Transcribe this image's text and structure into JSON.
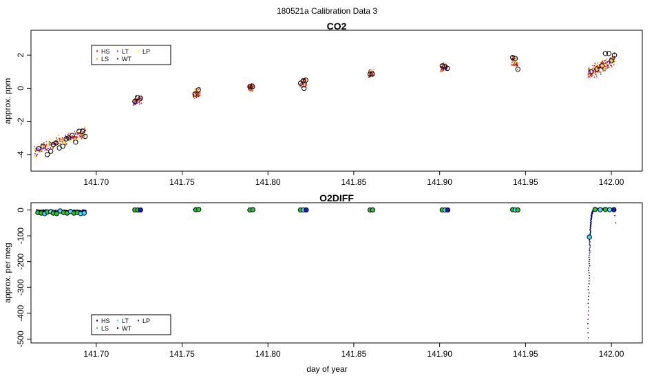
{
  "title": "180521a   Calibration Data 3",
  "xlabel": "day of year",
  "colors": {
    "HS": "#e8141c",
    "LS": "#ff9e12",
    "LT": "#a82df0",
    "WT": "#8a1010",
    "LP": "#ffff00",
    "HS2": "#000080",
    "LS2": "#22c832",
    "LT2": "#40e0ff",
    "WT2": "#000000",
    "LP2": "#1a1acc"
  },
  "chart_data": [
    {
      "type": "scatter",
      "title": "CO2",
      "ylabel": "approx. ppm",
      "xlim": [
        141.662,
        142.018
      ],
      "ylim": [
        -5.0,
        3.5
      ],
      "xticks": [
        141.7,
        141.75,
        141.8,
        141.85,
        141.9,
        141.95,
        142.0
      ],
      "xtick_labels": [
        "141.70",
        "141.75",
        "141.80",
        "141.85",
        "141.90",
        "141.95",
        "142.00"
      ],
      "yticks": [
        -4,
        -2,
        0,
        2
      ],
      "ytick_labels": [
        "-4",
        "-2",
        "0",
        "2"
      ],
      "legend": {
        "position": "top-left",
        "entries": [
          {
            "label": "HS",
            "color": "#e8141c"
          },
          {
            "label": "LS",
            "color": "#ff9e12"
          },
          {
            "label": "LT",
            "color": "#a82df0"
          },
          {
            "label": "WT",
            "color": "#8a1010"
          },
          {
            "label": "LP",
            "color": "#ffff00"
          }
        ]
      },
      "clusters": [
        {
          "x": [
            141.664,
            141.694
          ],
          "center": -3.2,
          "spread": 0.45,
          "trend": 1.2,
          "n": 260,
          "series": [
            "LT",
            "HS",
            "LS",
            "LP",
            "WT"
          ]
        },
        {
          "x": [
            141.7215,
            141.7265
          ],
          "center": -0.75,
          "spread": 0.35,
          "trend": 0.2,
          "n": 60,
          "series": [
            "HS",
            "LS",
            "LT",
            "WT"
          ]
        },
        {
          "x": [
            141.7565,
            141.7605
          ],
          "center": -0.3,
          "spread": 0.4,
          "trend": 0.15,
          "n": 60,
          "series": [
            "LS",
            "HS",
            "WT"
          ]
        },
        {
          "x": [
            141.7885,
            141.7915
          ],
          "center": 0.05,
          "spread": 0.35,
          "trend": 0.05,
          "n": 50,
          "series": [
            "HS",
            "LS",
            "WT"
          ]
        },
        {
          "x": [
            141.8185,
            141.8225
          ],
          "center": 0.3,
          "spread": 0.4,
          "trend": 0.1,
          "n": 60,
          "series": [
            "LS",
            "HS",
            "LT",
            "WT"
          ]
        },
        {
          "x": [
            141.8585,
            141.8615
          ],
          "center": 0.85,
          "spread": 0.35,
          "trend": 0.05,
          "n": 45,
          "series": [
            "LS",
            "HS",
            "WT"
          ]
        },
        {
          "x": [
            141.9005,
            141.9045
          ],
          "center": 1.25,
          "spread": 0.4,
          "trend": 0.05,
          "n": 55,
          "series": [
            "LS",
            "HS",
            "LT",
            "WT"
          ]
        },
        {
          "x": [
            141.9415,
            141.9455
          ],
          "center": 1.6,
          "spread": 0.45,
          "trend": -0.3,
          "n": 60,
          "series": [
            "LS",
            "HS",
            "WT"
          ]
        },
        {
          "x": [
            141.9865,
            142.002
          ],
          "center": 1.3,
          "spread": 0.5,
          "trend": 0.9,
          "n": 240,
          "series": [
            "LP",
            "LS",
            "HS",
            "LT",
            "WT"
          ]
        }
      ],
      "means": [
        {
          "x": 141.6665,
          "y": -3.65
        },
        {
          "x": 141.669,
          "y": -3.5
        },
        {
          "x": 141.6715,
          "y": -4.0
        },
        {
          "x": 141.6735,
          "y": -3.8
        },
        {
          "x": 141.675,
          "y": -3.4
        },
        {
          "x": 141.6765,
          "y": -3.3
        },
        {
          "x": 141.6785,
          "y": -3.6
        },
        {
          "x": 141.6805,
          "y": -3.5
        },
        {
          "x": 141.6825,
          "y": -3.05
        },
        {
          "x": 141.684,
          "y": -3.0
        },
        {
          "x": 141.686,
          "y": -2.85
        },
        {
          "x": 141.688,
          "y": -3.25
        },
        {
          "x": 141.69,
          "y": -2.6
        },
        {
          "x": 141.692,
          "y": -2.6
        },
        {
          "x": 141.6935,
          "y": -2.9
        },
        {
          "x": 141.7225,
          "y": -0.8
        },
        {
          "x": 141.724,
          "y": -0.55
        },
        {
          "x": 141.7258,
          "y": -0.6
        },
        {
          "x": 141.7575,
          "y": -0.35
        },
        {
          "x": 141.7595,
          "y": -0.1
        },
        {
          "x": 141.7895,
          "y": 0.1
        },
        {
          "x": 141.791,
          "y": 0.1
        },
        {
          "x": 141.819,
          "y": 0.3
        },
        {
          "x": 141.8205,
          "y": 0.45
        },
        {
          "x": 141.822,
          "y": 0.5
        },
        {
          "x": 141.821,
          "y": 0.0
        },
        {
          "x": 141.8595,
          "y": 0.85
        },
        {
          "x": 141.8608,
          "y": 0.85
        },
        {
          "x": 141.9015,
          "y": 1.35
        },
        {
          "x": 141.903,
          "y": 1.3
        },
        {
          "x": 141.9045,
          "y": 1.2
        },
        {
          "x": 141.9425,
          "y": 1.85
        },
        {
          "x": 141.944,
          "y": 1.8
        },
        {
          "x": 141.9455,
          "y": 1.15
        },
        {
          "x": 141.988,
          "y": 1.0
        },
        {
          "x": 141.9915,
          "y": 1.15
        },
        {
          "x": 141.9945,
          "y": 1.35
        },
        {
          "x": 141.9965,
          "y": 2.1
        },
        {
          "x": 141.9985,
          "y": 2.1
        },
        {
          "x": 142.0,
          "y": 1.65
        },
        {
          "x": 142.0018,
          "y": 2.0
        }
      ]
    },
    {
      "type": "scatter",
      "title": "O2DIFF",
      "ylabel": "approx. per meg",
      "xlim": [
        141.662,
        142.018
      ],
      "ylim": [
        -515,
        28
      ],
      "xticks": [
        141.7,
        141.75,
        141.8,
        141.85,
        141.9,
        141.95,
        142.0
      ],
      "xtick_labels": [
        "141.70",
        "141.75",
        "141.80",
        "141.85",
        "141.90",
        "141.95",
        "142.00"
      ],
      "yticks": [
        0,
        -100,
        -200,
        -300,
        -400,
        -500
      ],
      "ytick_labels": [
        "0",
        "-100",
        "-200",
        "-300",
        "-400",
        "-500"
      ],
      "legend": {
        "position": "bottom-left",
        "entries": [
          {
            "label": "HS",
            "color": "#000080"
          },
          {
            "label": "LS",
            "color": "#22c832"
          },
          {
            "label": "LT",
            "color": "#40e0ff"
          },
          {
            "label": "WT",
            "color": "#000000"
          },
          {
            "label": "LP",
            "color": "#1a1acc"
          }
        ]
      },
      "clusters": [
        {
          "x": [
            141.665,
            141.694
          ],
          "center": -3,
          "spread": 6,
          "n": 220,
          "series": [
            "HS2",
            "LP2",
            "WT2"
          ]
        },
        {
          "x": [
            141.7215,
            141.7265
          ],
          "center": 0,
          "spread": 2,
          "n": 20,
          "series": [
            "HS2",
            "LP2"
          ]
        },
        {
          "x": [
            141.7565,
            141.7605
          ],
          "center": 1,
          "spread": 2,
          "n": 15,
          "series": [
            "HS2"
          ]
        },
        {
          "x": [
            141.7885,
            141.7915
          ],
          "center": 0,
          "spread": 2,
          "n": 15,
          "series": [
            "HS2"
          ]
        },
        {
          "x": [
            141.8185,
            141.8225
          ],
          "center": 0,
          "spread": 2,
          "n": 20,
          "series": [
            "HS2",
            "LP2"
          ]
        },
        {
          "x": [
            141.8585,
            141.8615
          ],
          "center": 0,
          "spread": 2,
          "n": 15,
          "series": [
            "HS2"
          ]
        },
        {
          "x": [
            141.9005,
            141.9045
          ],
          "center": 0,
          "spread": 2,
          "n": 15,
          "series": [
            "HS2",
            "LP2"
          ]
        },
        {
          "x": [
            141.9415,
            141.9455
          ],
          "center": 1,
          "spread": 2,
          "n": 15,
          "series": [
            "HS2"
          ]
        },
        {
          "x": [
            141.9895,
            142.002
          ],
          "center": 3,
          "spread": 4,
          "n": 140,
          "series": [
            "HS2",
            "LP2",
            "WT2"
          ]
        }
      ],
      "drift": {
        "x_start": 141.9865,
        "x_end": 141.9895,
        "y_start": -495,
        "y_end": 0,
        "n": 110
      },
      "outliers": [
        {
          "x": 142.0025,
          "y": -50
        },
        {
          "x": 142.002,
          "y": -22
        }
      ],
      "means": [
        {
          "x": 141.666,
          "y": -10,
          "s": "LS2"
        },
        {
          "x": 141.668,
          "y": -12,
          "s": "LS2"
        },
        {
          "x": 141.67,
          "y": -14,
          "s": "LT2"
        },
        {
          "x": 141.6715,
          "y": -8,
          "s": "LS2"
        },
        {
          "x": 141.6735,
          "y": -6,
          "s": "LT2"
        },
        {
          "x": 141.675,
          "y": -12,
          "s": "LS2"
        },
        {
          "x": 141.677,
          "y": -14,
          "s": "LS2"
        },
        {
          "x": 141.679,
          "y": -4,
          "s": "LT2"
        },
        {
          "x": 141.681,
          "y": -10,
          "s": "LS2"
        },
        {
          "x": 141.683,
          "y": -12,
          "s": "LS2"
        },
        {
          "x": 141.685,
          "y": -6,
          "s": "LT2"
        },
        {
          "x": 141.687,
          "y": -12,
          "s": "LS2"
        },
        {
          "x": 141.689,
          "y": -10,
          "s": "LS2"
        },
        {
          "x": 141.691,
          "y": -14,
          "s": "LT2"
        },
        {
          "x": 141.693,
          "y": -12,
          "s": "LT2"
        },
        {
          "x": 141.7225,
          "y": 0,
          "s": "LS2"
        },
        {
          "x": 141.7242,
          "y": 0,
          "s": "LS2"
        },
        {
          "x": 141.7258,
          "y": 0,
          "s": "LP2"
        },
        {
          "x": 141.758,
          "y": 1,
          "s": "LS2"
        },
        {
          "x": 141.7597,
          "y": 2,
          "s": "LS2"
        },
        {
          "x": 141.7895,
          "y": 0,
          "s": "LS2"
        },
        {
          "x": 141.7912,
          "y": 1,
          "s": "LS2"
        },
        {
          "x": 141.819,
          "y": 0,
          "s": "LS2"
        },
        {
          "x": 141.8207,
          "y": 0,
          "s": "LT2"
        },
        {
          "x": 141.8223,
          "y": 0,
          "s": "LP2"
        },
        {
          "x": 141.8595,
          "y": 0,
          "s": "LS2"
        },
        {
          "x": 141.861,
          "y": 0,
          "s": "LS2"
        },
        {
          "x": 141.9015,
          "y": 0,
          "s": "LS2"
        },
        {
          "x": 141.9032,
          "y": 0,
          "s": "LT2"
        },
        {
          "x": 141.9047,
          "y": 0,
          "s": "LP2"
        },
        {
          "x": 141.9425,
          "y": 1,
          "s": "LS2"
        },
        {
          "x": 141.944,
          "y": 0,
          "s": "LT2"
        },
        {
          "x": 141.9455,
          "y": 0,
          "s": "LS2"
        },
        {
          "x": 141.9872,
          "y": -105,
          "s": "LT2"
        },
        {
          "x": 141.9905,
          "y": 2,
          "s": "LS2"
        },
        {
          "x": 141.9935,
          "y": 1,
          "s": "LT2"
        },
        {
          "x": 141.9965,
          "y": 2,
          "s": "LS2"
        },
        {
          "x": 141.999,
          "y": 1,
          "s": "LT2"
        },
        {
          "x": 142.0015,
          "y": 1,
          "s": "LP2"
        }
      ]
    }
  ]
}
